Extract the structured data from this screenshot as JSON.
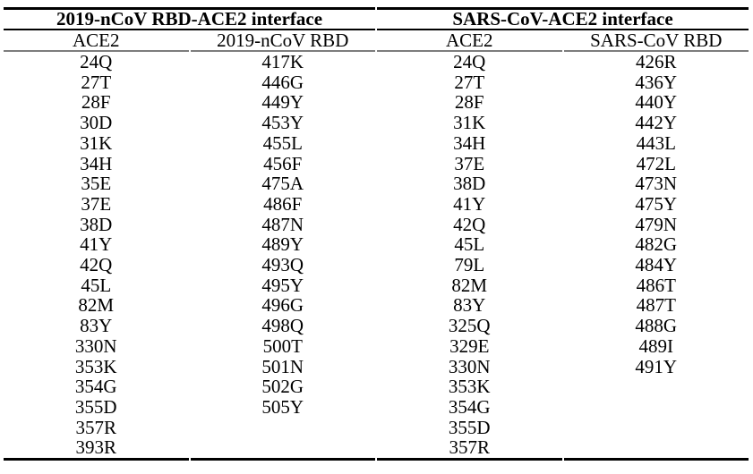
{
  "table": {
    "groups": [
      {
        "label": "2019-nCoV RBD-ACE2 interface"
      },
      {
        "label": "SARS-CoV-ACE2 interface"
      }
    ],
    "columns": [
      {
        "group": "2019-nCoV RBD-ACE2 interface",
        "header": "ACE2",
        "values": [
          "24Q",
          "27T",
          "28F",
          "30D",
          "31K",
          "34H",
          "35E",
          "37E",
          "38D",
          "41Y",
          "42Q",
          "45L",
          "82M",
          "83Y",
          "330N",
          "353K",
          "354G",
          "355D",
          "357R",
          "393R"
        ]
      },
      {
        "group": "2019-nCoV RBD-ACE2 interface",
        "header": "2019-nCoV RBD",
        "values": [
          "417K",
          "446G",
          "449Y",
          "453Y",
          "455L",
          "456F",
          "475A",
          "486F",
          "487N",
          "489Y",
          "493Q",
          "495Y",
          "496G",
          "498Q",
          "500T",
          "501N",
          "502G",
          "505Y"
        ]
      },
      {
        "group": "SARS-CoV-ACE2 interface",
        "header": "ACE2",
        "values": [
          "24Q",
          "27T",
          "28F",
          "31K",
          "34H",
          "37E",
          "38D",
          "41Y",
          "42Q",
          "45L",
          "79L",
          "82M",
          "83Y",
          "325Q",
          "329E",
          "330N",
          "353K",
          "354G",
          "355D",
          "357R"
        ]
      },
      {
        "group": "SARS-CoV-ACE2 interface",
        "header": "SARS-CoV RBD",
        "values": [
          "426R",
          "436Y",
          "440Y",
          "442Y",
          "443L",
          "472L",
          "473N",
          "475Y",
          "479N",
          "482G",
          "484Y",
          "486T",
          "487T",
          "488G",
          "489I",
          "491Y"
        ]
      }
    ],
    "row_count": 20
  },
  "colors": {
    "background": "#ffffff",
    "text": "#000000",
    "border_strong": "#000000",
    "border_light": "#7d7d7d"
  }
}
